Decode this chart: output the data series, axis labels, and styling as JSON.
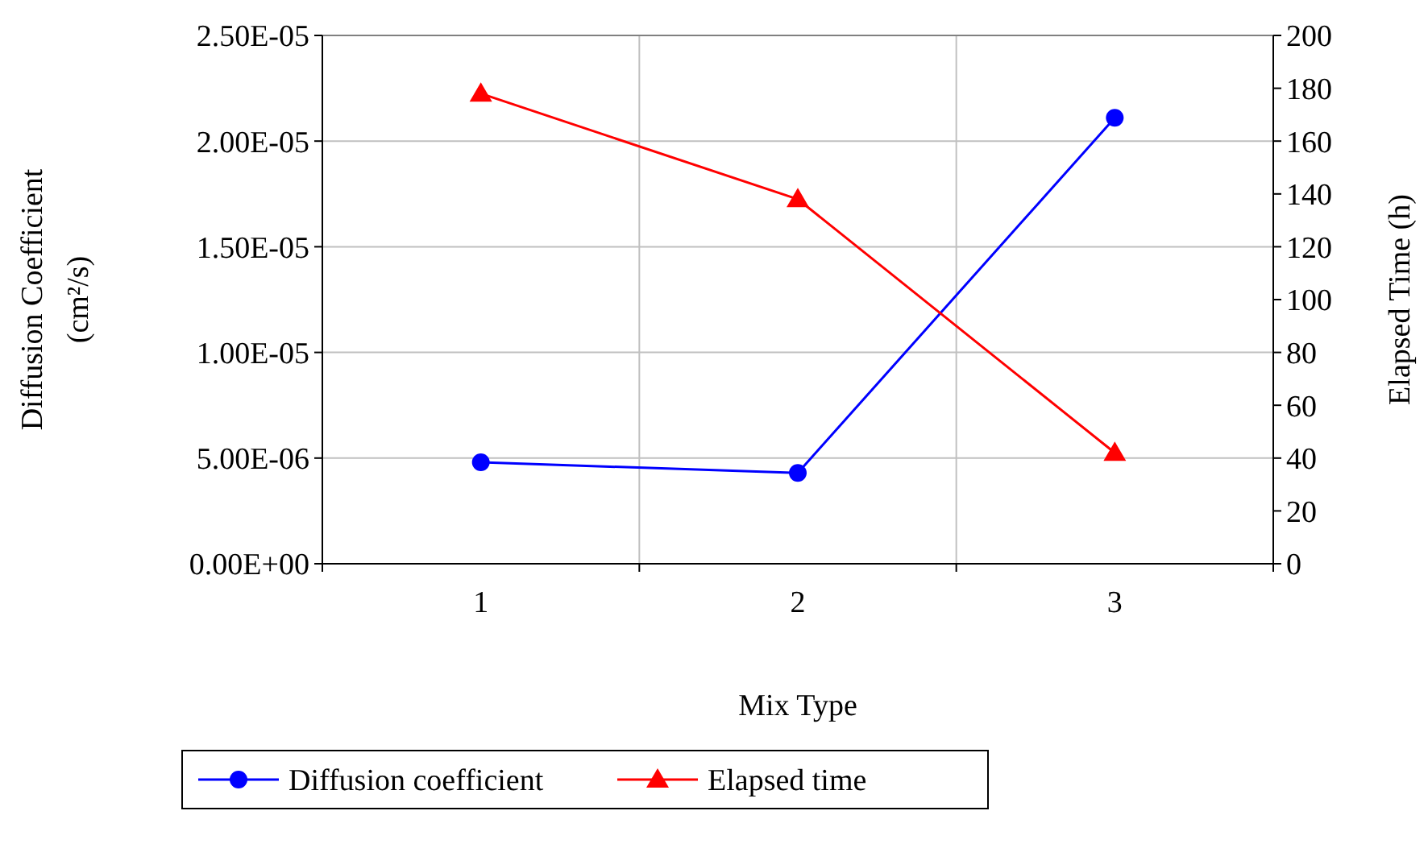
{
  "chart_data": {
    "type": "line",
    "xlabel": "Mix Type",
    "ylabel": "Diffusion Coefficient (cm²/s)",
    "y2label": "Elapsed Time (h)",
    "categories": [
      "1",
      "2",
      "3"
    ],
    "series": [
      {
        "name": "Diffusion coefficient",
        "color": "#0000ff",
        "values": [
          4.8e-06,
          4.3e-06,
          2.11e-05
        ],
        "marker": "circle"
      },
      {
        "name": "Elapsed time",
        "color": "#ff0000",
        "values": [
          178,
          138,
          42
        ],
        "axis": "y2",
        "marker": "triangle"
      }
    ],
    "ylim": [
      0,
      2.5e-05
    ],
    "yticks": [
      {
        "value": 0,
        "label": "0.00E+00"
      },
      {
        "value": 5e-06,
        "label": "5.00E-06"
      },
      {
        "value": 1e-05,
        "label": "1.00E-05"
      },
      {
        "value": 1.5e-05,
        "label": "1.50E-05"
      },
      {
        "value": 2e-05,
        "label": "2.00E-05"
      },
      {
        "value": 2.5e-05,
        "label": "2.50E-05"
      }
    ],
    "y2lim": [
      0,
      200
    ],
    "y2ticks": [
      0,
      20,
      40,
      60,
      80,
      100,
      120,
      140,
      160,
      180,
      200
    ],
    "grid": true,
    "legend": "bottom",
    "line_style": "solid"
  }
}
